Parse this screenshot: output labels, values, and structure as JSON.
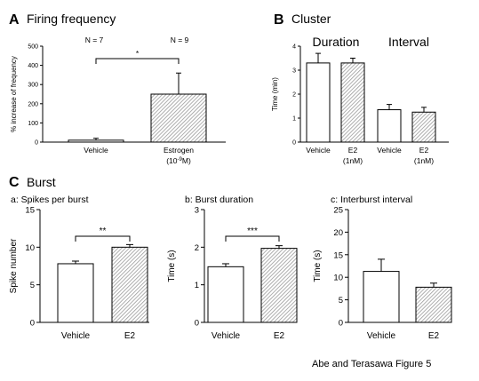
{
  "colors": {
    "hatch": "#9a9a9a",
    "line": "#000000",
    "background": "#ffffff"
  },
  "figure": {
    "caption": "Abe and Terasawa Figure 5"
  },
  "panels": {
    "A": {
      "letter": "A",
      "title": "Firing frequency",
      "n_vehicle": "N = 7",
      "n_estrogen": "N = 9"
    },
    "B": {
      "letter": "B",
      "title": "Cluster",
      "group_duration": "Duration",
      "group_interval": "Interval"
    },
    "C": {
      "letter": "C",
      "title": "Burst"
    }
  },
  "chart_data": [
    {
      "id": "A",
      "type": "bar",
      "title": "Firing frequency",
      "ylabel": "% increase of frequency",
      "ylim": [
        0,
        500
      ],
      "yticks": [
        0,
        100,
        200,
        300,
        400,
        500
      ],
      "categories": [
        "Vehicle",
        "Estrogen"
      ],
      "category_sublabels": [
        "",
        "(10-9M)"
      ],
      "values": [
        10,
        250
      ],
      "errors": [
        10,
        110
      ],
      "annotations": [
        {
          "text": "*",
          "between": [
            0,
            1
          ]
        }
      ],
      "fills": [
        "white",
        "hatched"
      ]
    },
    {
      "id": "B",
      "type": "bar",
      "title": "Cluster",
      "ylabel": "Time (min)",
      "ylim": [
        0,
        4
      ],
      "yticks": [
        0,
        1,
        2,
        3,
        4
      ],
      "groups": [
        "Duration",
        "Interval"
      ],
      "categories": [
        "Vehicle",
        "E2",
        "Vehicle",
        "E2"
      ],
      "category_sublabels": [
        "",
        "(1nM)",
        "",
        "(1nM)"
      ],
      "values": [
        3.3,
        3.3,
        1.35,
        1.25
      ],
      "errors": [
        0.4,
        0.2,
        0.22,
        0.2
      ],
      "fills": [
        "white",
        "hatched",
        "white",
        "hatched"
      ]
    },
    {
      "id": "Ca",
      "type": "bar",
      "title": "a: Spikes per burst",
      "ylabel": "Spike number",
      "ylim": [
        0,
        15
      ],
      "yticks": [
        0,
        5,
        10,
        15
      ],
      "categories": [
        "Vehicle",
        "E2"
      ],
      "values": [
        7.8,
        10.0
      ],
      "errors": [
        0.35,
        0.35
      ],
      "annotations": [
        {
          "text": "**",
          "between": [
            0,
            1
          ]
        }
      ],
      "fills": [
        "white",
        "hatched"
      ]
    },
    {
      "id": "Cb",
      "type": "bar",
      "title": "b: Burst duration",
      "ylabel": "Time (s)",
      "ylim": [
        0,
        3
      ],
      "yticks": [
        0,
        1,
        2,
        3
      ],
      "categories": [
        "Vehicle",
        "E2"
      ],
      "values": [
        1.48,
        1.97
      ],
      "errors": [
        0.08,
        0.07
      ],
      "annotations": [
        {
          "text": "***",
          "between": [
            0,
            1
          ]
        }
      ],
      "fills": [
        "white",
        "hatched"
      ]
    },
    {
      "id": "Cc",
      "type": "bar",
      "title": "c: Interburst interval",
      "ylabel": "Time (s)",
      "ylim": [
        0,
        25
      ],
      "yticks": [
        0,
        5,
        10,
        15,
        20,
        25
      ],
      "categories": [
        "Vehicle",
        "E2"
      ],
      "values": [
        11.3,
        7.8
      ],
      "errors": [
        2.7,
        0.9
      ],
      "fills": [
        "white",
        "hatched"
      ]
    }
  ]
}
